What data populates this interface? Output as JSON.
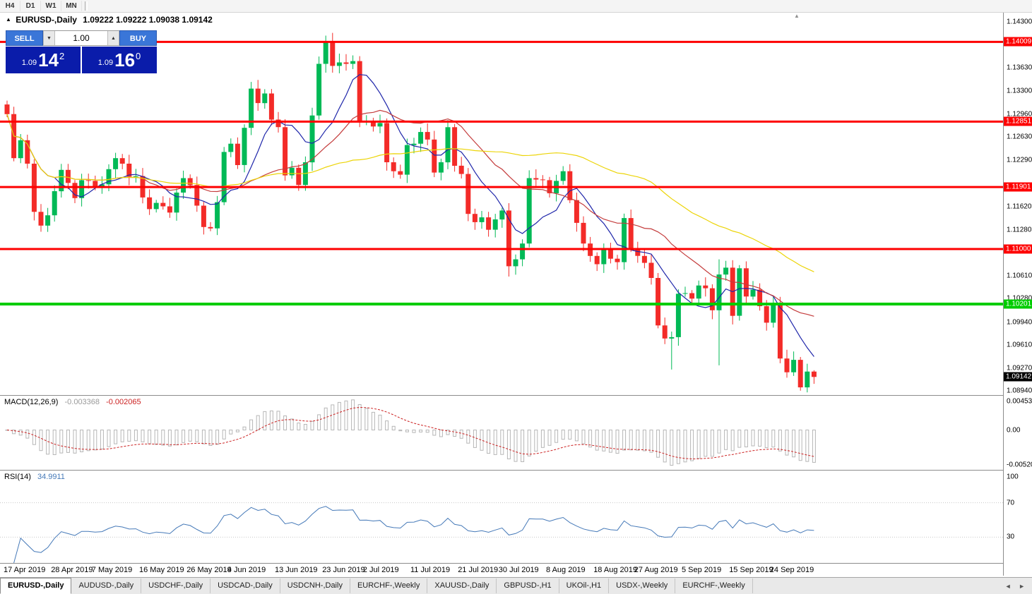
{
  "toolbar": {
    "timeframes": [
      "H4",
      "D1",
      "W1",
      "MN"
    ]
  },
  "chart": {
    "marker": "▲",
    "symbol_title": "EURUSD-,Daily",
    "ohlc": "1.09222 1.09222 1.09038 1.09142",
    "trade_panel": {
      "sell_label": "SELL",
      "buy_label": "BUY",
      "volume": "1.00",
      "spinner_down": "▼",
      "spinner_up": "▲",
      "bid": {
        "prefix": "1.09",
        "big": "14",
        "sup": "2"
      },
      "ask": {
        "prefix": "1.09",
        "big": "16",
        "sup": "0"
      }
    }
  },
  "icons": {
    "shift_marker": "▲",
    "tab_scroll": "◄ ►"
  },
  "chart_data": {
    "type": "candlestick",
    "symbol": "EURUSD",
    "timeframe": "Daily",
    "x_step": 9.6,
    "first_open": 1.131,
    "closes": [
      1.1296,
      1.1232,
      1.1258,
      1.1224,
      1.1154,
      1.1134,
      1.1149,
      1.1184,
      1.1215,
      1.1196,
      1.1174,
      1.12,
      1.1199,
      1.1191,
      1.1194,
      1.1216,
      1.1232,
      1.1224,
      1.1205,
      1.1206,
      1.1175,
      1.1158,
      1.1167,
      1.1162,
      1.1153,
      1.1182,
      1.1203,
      1.1193,
      1.1163,
      1.1132,
      1.113,
      1.1168,
      1.1241,
      1.1253,
      1.1222,
      1.1276,
      1.1333,
      1.1312,
      1.1326,
      1.1288,
      1.1277,
      1.1207,
      1.1218,
      1.1193,
      1.1226,
      1.1294,
      1.1369,
      1.14,
      1.1366,
      1.1371,
      1.1369,
      1.1373,
      1.1285,
      1.1286,
      1.1278,
      1.1283,
      1.1226,
      1.1213,
      1.1208,
      1.1251,
      1.1253,
      1.127,
      1.1259,
      1.1211,
      1.1226,
      1.1277,
      1.1221,
      1.1209,
      1.1151,
      1.1139,
      1.1146,
      1.1128,
      1.1143,
      1.1156,
      1.1075,
      1.1085,
      1.1108,
      1.1203,
      1.1201,
      1.12,
      1.1181,
      1.1199,
      1.1213,
      1.1171,
      1.1138,
      1.1108,
      1.109,
      1.1078,
      1.11,
      1.1086,
      1.1081,
      1.1145,
      1.1101,
      1.109,
      1.108,
      1.1058,
      1.0989,
      1.097,
      1.0972,
      1.1035,
      1.1036,
      1.1028,
      1.1047,
      1.1043,
      1.1011,
      1.1063,
      1.1073,
      1.1003,
      1.1072,
      1.1031,
      1.1041,
      1.1017,
      1.0993,
      1.1021,
      1.0941,
      1.0921,
      1.0939,
      1.0899,
      1.0922,
      1.09142
    ],
    "wick_overrides": {
      "47": {
        "hi": 0.001
      },
      "48": {
        "hi": 0.0014
      },
      "74": {
        "lo": 0.0015
      },
      "98": {
        "lo": 0.0045
      },
      "105": {
        "lo": 0.008,
        "hi": 0.0022
      },
      "119": {
        "hi": 0.0002,
        "lo": 0.001
      }
    },
    "price_axis": {
      "top_price": 1.14443,
      "bottom_price": 1.08879,
      "visible_ticks": [
        "1.14300",
        "1.13630",
        "1.13300",
        "1.12960",
        "1.12630",
        "1.12290",
        "1.11620",
        "1.11280",
        "1.10610",
        "1.10280",
        "1.09940",
        "1.09610",
        "1.09270",
        "1.08940"
      ]
    },
    "levels": [
      {
        "price": 1.14009,
        "label": "1.14009",
        "color": "#fe0000",
        "width": 3
      },
      {
        "price": 1.12851,
        "label": "1.12851",
        "color": "#fe0000",
        "width": 3
      },
      {
        "price": 1.11901,
        "label": "1.11901",
        "color": "#fe0000",
        "width": 3
      },
      {
        "price": 1.11,
        "label": "1.11000",
        "color": "#fe0000",
        "width": 3
      },
      {
        "price": 1.10201,
        "label": "1.10201",
        "color": "#00cc00",
        "width": 4
      }
    ],
    "current_price": {
      "value": 1.09142,
      "label": "1.09142",
      "color": "#000000"
    },
    "ma": [
      {
        "period": 8,
        "color": "#1f26aa"
      },
      {
        "period": 21,
        "color": "#c43c3c"
      },
      {
        "period": 50,
        "color": "#ecd406"
      }
    ],
    "date_labels": [
      {
        "text": "17 Apr 2019",
        "idx": 0
      },
      {
        "text": "28 Apr 2019",
        "idx": 7
      },
      {
        "text": "7 May 2019",
        "idx": 13
      },
      {
        "text": "16 May 2019",
        "idx": 20
      },
      {
        "text": "26 May 2019",
        "idx": 27
      },
      {
        "text": "4 Jun 2019",
        "idx": 33
      },
      {
        "text": "13 Jun 2019",
        "idx": 40
      },
      {
        "text": "23 Jun 2019",
        "idx": 47
      },
      {
        "text": "2 Jul 2019",
        "idx": 53
      },
      {
        "text": "11 Jul 2019",
        "idx": 60
      },
      {
        "text": "21 Jul 2019",
        "idx": 67
      },
      {
        "text": "30 Jul 2019",
        "idx": 73
      },
      {
        "text": "8 Aug 2019",
        "idx": 80
      },
      {
        "text": "18 Aug 2019",
        "idx": 87
      },
      {
        "text": "27 Aug 2019",
        "idx": 93
      },
      {
        "text": "5 Sep 2019",
        "idx": 100
      },
      {
        "text": "15 Sep 2019",
        "idx": 107
      },
      {
        "text": "24 Sep 2019",
        "idx": 113
      }
    ],
    "macd": {
      "label": "MACD(12,26,9)",
      "value_main": "-0.003368",
      "value_signal": "-0.002065",
      "fast": 12,
      "slow": 26,
      "signal": 9,
      "axis_labels": [
        {
          "text": "0.004536",
          "value": 0.004536
        },
        {
          "text": "0.00",
          "value": 0
        },
        {
          "text": "-0.005205",
          "value": -0.005205
        }
      ]
    },
    "rsi": {
      "label": "RSI(14)",
      "value": "34.9911",
      "period": 14,
      "levels": [
        70,
        30
      ],
      "axis_labels": [
        {
          "text": "100",
          "value": 100
        },
        {
          "text": "70",
          "value": 70
        },
        {
          "text": "30",
          "value": 30
        }
      ]
    }
  },
  "colors": {
    "candle_up": "#00b956",
    "candle_down": "#f32b28",
    "macd_bar": "#b6b6b6",
    "macd_signal": "#cc2222",
    "rsi_line": "#4579b8",
    "separator": "#8c8c8c"
  },
  "tabs": {
    "items": [
      {
        "label": "EURUSD-,Daily",
        "active": true
      },
      {
        "label": "AUDUSD-,Daily",
        "active": false
      },
      {
        "label": "USDCHF-,Daily",
        "active": false
      },
      {
        "label": "USDCAD-,Daily",
        "active": false
      },
      {
        "label": "USDCNH-,Daily",
        "active": false
      },
      {
        "label": "EURCHF-,Weekly",
        "active": false
      },
      {
        "label": "XAUUSD-,Daily",
        "active": false
      },
      {
        "label": "GBPUSD-,H1",
        "active": false
      },
      {
        "label": "UKOil-,H1",
        "active": false
      },
      {
        "label": "USDX-,Weekly",
        "active": false
      },
      {
        "label": "EURCHF-,Weekly",
        "active": false
      }
    ]
  }
}
